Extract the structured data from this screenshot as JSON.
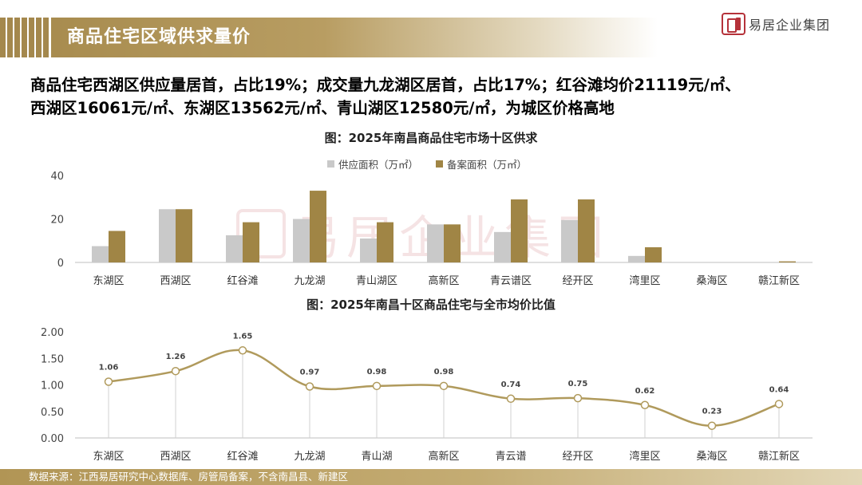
{
  "header": {
    "title": "商品住宅区域供求量价",
    "logo_text": "易居企业集团",
    "watermark_text": "易居企业集团"
  },
  "headline": {
    "line1": "商品住宅西湖区供应量居首，占比19%；成交量九龙湖区居首，占比17%；红谷滩均价21119元/㎡、",
    "line2": "西湖区16061元/㎡、东湖区13562元/㎡、青山湖区12580元/㎡，为城区价格高地"
  },
  "footer": {
    "source": "数据来源：江西易居研究中心数据库、房管局备案，不含南昌县、新建区"
  },
  "colors": {
    "accent": "#a4884d",
    "supply": "#c9c9c9",
    "record": "#a08545",
    "line": "#b09a5c",
    "axis": "#bfbfbf"
  },
  "chart_data": [
    {
      "type": "bar",
      "title": "图：2025年南昌商品住宅市场十区供求",
      "categories": [
        "东湖区",
        "西湖区",
        "红谷滩",
        "九龙湖",
        "青山湖区",
        "高新区",
        "青云谱区",
        "经开区",
        "湾里区",
        "桑海区",
        "赣江新区"
      ],
      "series": [
        {
          "name": "供应面积（万㎡）",
          "values": [
            7.5,
            24.5,
            12.5,
            20,
            11,
            17.5,
            14,
            19.5,
            3,
            0,
            0
          ],
          "color": "#c9c9c9"
        },
        {
          "name": "备案面积（万㎡）",
          "values": [
            14.5,
            24.5,
            18.5,
            33,
            18.5,
            17.5,
            29,
            29,
            7,
            0,
            0.5
          ],
          "color": "#a08545"
        }
      ],
      "ylim": [
        0,
        40
      ],
      "yticks": [
        0,
        20,
        40
      ],
      "legend": "top",
      "grid": false
    },
    {
      "type": "line",
      "title": "图：2025年南昌十区商品住宅与全市均价比值",
      "categories": [
        "东湖区",
        "西湖区",
        "红谷滩",
        "九龙湖",
        "青山湖",
        "高新区",
        "青云谱",
        "经开区",
        "湾里区",
        "桑海区",
        "赣江新区"
      ],
      "series": [
        {
          "values": [
            1.06,
            1.26,
            1.65,
            0.97,
            0.98,
            0.98,
            0.74,
            0.75,
            0.62,
            0.23,
            0.64
          ],
          "color": "#b09a5c"
        }
      ],
      "value_labels": [
        "1.06",
        "1.26",
        "1.65",
        "0.97",
        "0.98",
        "0.98",
        "0.74",
        "0.75",
        "0.62",
        "0.23",
        "0.64"
      ],
      "ylim": [
        0,
        2
      ],
      "yticks": [
        "0.00",
        "0.50",
        "1.00",
        "1.50",
        "2.00"
      ],
      "grid": false
    }
  ]
}
